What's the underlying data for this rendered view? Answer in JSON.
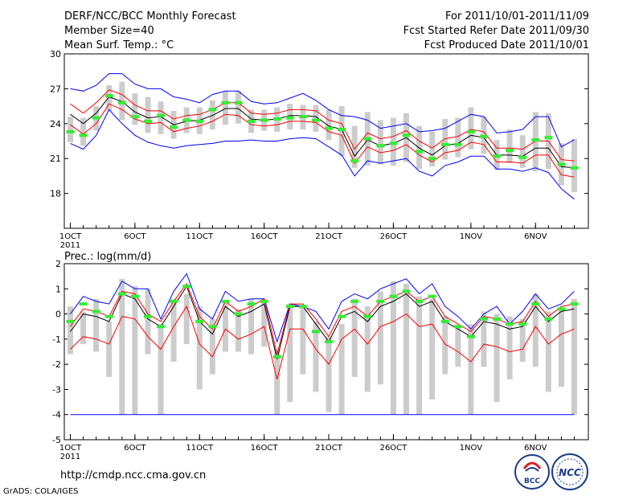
{
  "header": {
    "title": "DERF/NCC/BCC Monthly Forecast",
    "member_size": "Member Size=40",
    "variable": "Mean Surf. Temp.: °C",
    "period": "For 2011/10/01-2011/11/09",
    "started": "Fcst Started Refer Date 2011/09/30",
    "produced": "Fcst Produced Date 2011/10/01"
  },
  "footer": {
    "url": "http://cmdp.ncc.cma.gov.cn",
    "credit": "GrADS: COLA/IGES",
    "logo_bcc": "BCC",
    "logo_ncc": "NCC"
  },
  "colors": {
    "box": "#cccccc",
    "mean": "#000000",
    "spread": "#ff0000",
    "extreme": "#0000ff",
    "median": "#33ee33",
    "axis": "#000000"
  },
  "chart_data": [
    {
      "type": "line",
      "title": "Mean Surf. Temp.: °C",
      "ylim": [
        15,
        30
      ],
      "yticks": [
        18,
        21,
        24,
        27,
        30
      ],
      "xticks": [
        {
          "day": 1,
          "label": "1OCT",
          "sub": "2011"
        },
        {
          "day": 6,
          "label": "6OCT"
        },
        {
          "day": 11,
          "label": "11OCT"
        },
        {
          "day": 16,
          "label": "16OCT"
        },
        {
          "day": 21,
          "label": "21OCT"
        },
        {
          "day": 26,
          "label": "26OCT"
        },
        {
          "day": 32,
          "label": "1NOV"
        },
        {
          "day": 37,
          "label": "6NOV"
        }
      ],
      "days": [
        1,
        2,
        3,
        4,
        5,
        6,
        7,
        8,
        9,
        10,
        11,
        12,
        13,
        14,
        15,
        16,
        17,
        18,
        19,
        20,
        21,
        22,
        23,
        24,
        25,
        26,
        27,
        28,
        29,
        30,
        31,
        32,
        33,
        34,
        35,
        36,
        37,
        38,
        39,
        40
      ],
      "mean": [
        24.8,
        24.0,
        24.9,
        26.3,
        25.9,
        25.0,
        24.5,
        24.6,
        23.9,
        24.2,
        24.3,
        24.7,
        25.3,
        25.3,
        24.4,
        24.3,
        24.4,
        24.7,
        24.7,
        24.6,
        23.8,
        23.5,
        21.2,
        22.6,
        22.1,
        22.3,
        22.8,
        21.9,
        21.3,
        22.1,
        22.3,
        23.0,
        22.8,
        21.3,
        21.3,
        21.2,
        21.9,
        21.9,
        20.3,
        20.2
      ],
      "median": [
        23.3,
        23.0,
        24.5,
        26.4,
        25.8,
        24.6,
        24.2,
        24.7,
        23.7,
        24.3,
        24.2,
        25.2,
        25.8,
        25.8,
        24.2,
        24.3,
        24.4,
        24.5,
        24.6,
        24.3,
        23.6,
        23.5,
        20.8,
        22.7,
        22.1,
        22.3,
        23.0,
        21.6,
        21.0,
        22.2,
        22.2,
        23.3,
        22.9,
        21.2,
        21.7,
        21.1,
        22.6,
        22.8,
        20.5,
        20.2
      ],
      "upper": [
        25.7,
        24.9,
        25.8,
        26.9,
        26.5,
        25.6,
        25.1,
        25.1,
        24.4,
        24.7,
        24.8,
        25.2,
        25.8,
        25.8,
        24.9,
        24.8,
        24.9,
        25.2,
        25.2,
        25.1,
        24.3,
        24.0,
        21.8,
        23.2,
        22.7,
        22.9,
        23.4,
        22.5,
        21.9,
        22.7,
        22.9,
        23.5,
        23.3,
        21.9,
        21.9,
        21.8,
        22.5,
        22.5,
        20.9,
        20.8
      ],
      "lower": [
        23.9,
        23.1,
        24.0,
        25.7,
        25.2,
        24.4,
        24.0,
        24.1,
        23.3,
        23.6,
        23.8,
        24.2,
        24.8,
        24.7,
        23.9,
        23.8,
        23.9,
        24.2,
        24.2,
        24.1,
        23.3,
        23.0,
        20.6,
        22.0,
        21.5,
        21.7,
        22.2,
        21.3,
        20.7,
        21.5,
        21.7,
        22.4,
        22.2,
        20.7,
        20.7,
        20.6,
        21.3,
        21.3,
        19.6,
        19.4
      ],
      "max": [
        27.0,
        26.8,
        27.3,
        28.3,
        28.3,
        27.4,
        27.0,
        27.0,
        26.3,
        26.1,
        25.8,
        26.5,
        26.8,
        26.8,
        25.9,
        25.7,
        25.8,
        26.2,
        26.6,
        26.0,
        25.2,
        24.7,
        24.6,
        24.3,
        23.6,
        23.8,
        24.0,
        23.3,
        23.4,
        23.6,
        24.2,
        24.8,
        24.6,
        23.2,
        23.3,
        23.5,
        24.6,
        24.6,
        22.0,
        22.6
      ],
      "min": [
        22.3,
        21.8,
        23.0,
        25.2,
        24.0,
        23.0,
        22.4,
        22.1,
        21.9,
        22.1,
        22.2,
        22.3,
        22.5,
        22.5,
        22.6,
        22.5,
        22.5,
        22.7,
        22.8,
        22.7,
        22.0,
        21.3,
        19.5,
        20.8,
        20.6,
        20.8,
        21.0,
        19.9,
        19.5,
        20.4,
        20.7,
        21.2,
        21.2,
        20.1,
        20.1,
        19.9,
        20.2,
        19.8,
        18.4,
        17.5
      ],
      "box_top": [
        24.6,
        24.5,
        25.5,
        27.3,
        27.6,
        26.6,
        26.3,
        25.9,
        25.1,
        25.4,
        25.4,
        26.0,
        26.8,
        26.8,
        25.2,
        25.2,
        25.4,
        25.7,
        25.6,
        25.6,
        25.2,
        25.5,
        23.8,
        25.0,
        24.3,
        24.5,
        24.9,
        23.8,
        23.3,
        24.4,
        24.5,
        25.4,
        24.6,
        22.6,
        23.5,
        23.0,
        25.0,
        24.9,
        22.3,
        22.7
      ],
      "box_bot": [
        22.4,
        22.1,
        23.4,
        25.1,
        24.3,
        23.9,
        23.2,
        23.1,
        22.7,
        23.2,
        23.1,
        23.5,
        23.9,
        24.0,
        23.2,
        23.4,
        23.3,
        23.5,
        23.5,
        23.3,
        22.6,
        21.2,
        20.2,
        20.4,
        20.5,
        20.4,
        20.7,
        20.1,
        20.3,
        20.9,
        21.1,
        21.8,
        21.4,
        20.0,
        20.6,
        20.2,
        19.9,
        20.1,
        18.7,
        18.1
      ]
    },
    {
      "type": "line",
      "title": "Prec.: log(mm/d)",
      "ylim": [
        -5,
        2
      ],
      "yticks": [
        2,
        1,
        0,
        -1,
        -2,
        -3,
        -4,
        -5
      ],
      "xticks": [
        {
          "day": 1,
          "label": "1OCT",
          "sub": "2011"
        },
        {
          "day": 6,
          "label": "6OCT"
        },
        {
          "day": 11,
          "label": "11OCT"
        },
        {
          "day": 16,
          "label": "16OCT"
        },
        {
          "day": 21,
          "label": "21OCT"
        },
        {
          "day": 26,
          "label": "26OCT"
        },
        {
          "day": 32,
          "label": "1NOV"
        },
        {
          "day": 37,
          "label": "6NOV"
        }
      ],
      "days": [
        1,
        2,
        3,
        4,
        5,
        6,
        7,
        8,
        9,
        10,
        11,
        12,
        13,
        14,
        15,
        16,
        17,
        18,
        19,
        20,
        21,
        22,
        23,
        24,
        25,
        26,
        27,
        28,
        29,
        30,
        31,
        32,
        33,
        34,
        35,
        36,
        37,
        38,
        39,
        40
      ],
      "floor": -4.0,
      "mean": [
        -0.7,
        0.0,
        -0.1,
        -0.3,
        0.8,
        0.6,
        -0.2,
        -0.5,
        0.3,
        1.1,
        -0.3,
        -0.8,
        0.3,
        -0.1,
        0.1,
        0.4,
        -1.8,
        0.3,
        0.3,
        -0.4,
        -1.1,
        -0.1,
        0.1,
        -0.3,
        0.3,
        0.5,
        0.8,
        0.3,
        0.5,
        -0.3,
        -0.6,
        -0.9,
        -0.3,
        -0.4,
        -0.6,
        -0.5,
        0.3,
        -0.3,
        0.1,
        0.2
      ],
      "median": [
        -0.3,
        0.4,
        0.1,
        -0.1,
        0.8,
        0.7,
        -0.1,
        -0.5,
        0.5,
        1.1,
        -0.3,
        -0.5,
        0.5,
        0.0,
        0.4,
        0.5,
        -1.7,
        0.3,
        0.3,
        -0.7,
        -1.1,
        -0.1,
        0.5,
        -0.1,
        0.5,
        0.7,
        0.9,
        0.5,
        0.7,
        -0.3,
        -0.5,
        -0.9,
        -0.2,
        -0.2,
        -0.4,
        -0.4,
        0.4,
        -0.2,
        0.2,
        0.4
      ],
      "upper": [
        -0.5,
        0.2,
        0.1,
        -0.1,
        0.9,
        0.8,
        0.0,
        -0.3,
        0.5,
        1.2,
        -0.1,
        -0.6,
        0.5,
        0.1,
        0.3,
        0.6,
        -1.6,
        0.4,
        0.4,
        -0.2,
        -0.9,
        0.1,
        0.3,
        -0.1,
        0.5,
        0.7,
        0.9,
        0.5,
        0.7,
        -0.1,
        -0.4,
        -0.7,
        -0.1,
        -0.2,
        -0.4,
        -0.3,
        0.5,
        -0.1,
        0.3,
        0.4
      ],
      "lower": [
        -1.4,
        -0.9,
        -1.0,
        -1.2,
        -0.1,
        -0.2,
        -0.9,
        -1.4,
        -0.5,
        0.3,
        -1.2,
        -1.7,
        -0.6,
        -1.0,
        -0.8,
        -0.5,
        -2.6,
        -0.6,
        -0.6,
        -1.4,
        -2.0,
        -1.0,
        -0.6,
        -1.2,
        -0.5,
        -0.3,
        0.0,
        -0.5,
        -0.4,
        -1.2,
        -1.5,
        -1.9,
        -1.2,
        -1.3,
        -1.5,
        -1.4,
        -0.5,
        -1.2,
        -0.8,
        -0.6
      ],
      "max": [
        0.0,
        0.7,
        0.5,
        0.4,
        1.3,
        1.0,
        1.0,
        -0.2,
        0.9,
        1.6,
        0.2,
        -0.2,
        0.9,
        0.5,
        0.6,
        0.6,
        -1.1,
        0.4,
        0.3,
        0.1,
        -0.6,
        0.5,
        0.8,
        0.6,
        1.0,
        1.2,
        1.4,
        0.8,
        1.2,
        0.3,
        -0.1,
        -0.6,
        0.0,
        0.3,
        -0.4,
        0.1,
        0.8,
        0.2,
        0.4,
        0.9
      ],
      "box_top": [
        0.3,
        0.1,
        0.6,
        -0.3,
        1.4,
        1.1,
        1.0,
        -0.4,
        0.6,
        0.8,
        0.3,
        -0.2,
        0.5,
        0.2,
        0.6,
        0.6,
        -1.4,
        0.4,
        0.3,
        -0.3,
        -0.9,
        -0.4,
        0.6,
        0.3,
        0.9,
        1.3,
        1.2,
        0.7,
        0.6,
        -0.1,
        -0.5,
        -0.4,
        0.1,
        0.0,
        -0.1,
        -0.2,
        0.8,
        0.1,
        0.2,
        0.6
      ],
      "box_bot": [
        -1.6,
        -1.2,
        -1.5,
        -2.5,
        -4.0,
        -4.0,
        -1.6,
        -4.0,
        -1.9,
        -1.2,
        -3.0,
        -2.4,
        -1.5,
        -1.5,
        -1.6,
        -1.3,
        -4.0,
        -3.5,
        -2.4,
        -3.1,
        -3.9,
        -4.0,
        -2.5,
        -3.1,
        -2.8,
        -4.0,
        -4.0,
        -4.0,
        -3.4,
        -2.4,
        -2.1,
        -4.0,
        -2.1,
        -3.5,
        -2.6,
        -1.9,
        -2.1,
        -3.1,
        -2.9,
        -4.0
      ]
    }
  ]
}
